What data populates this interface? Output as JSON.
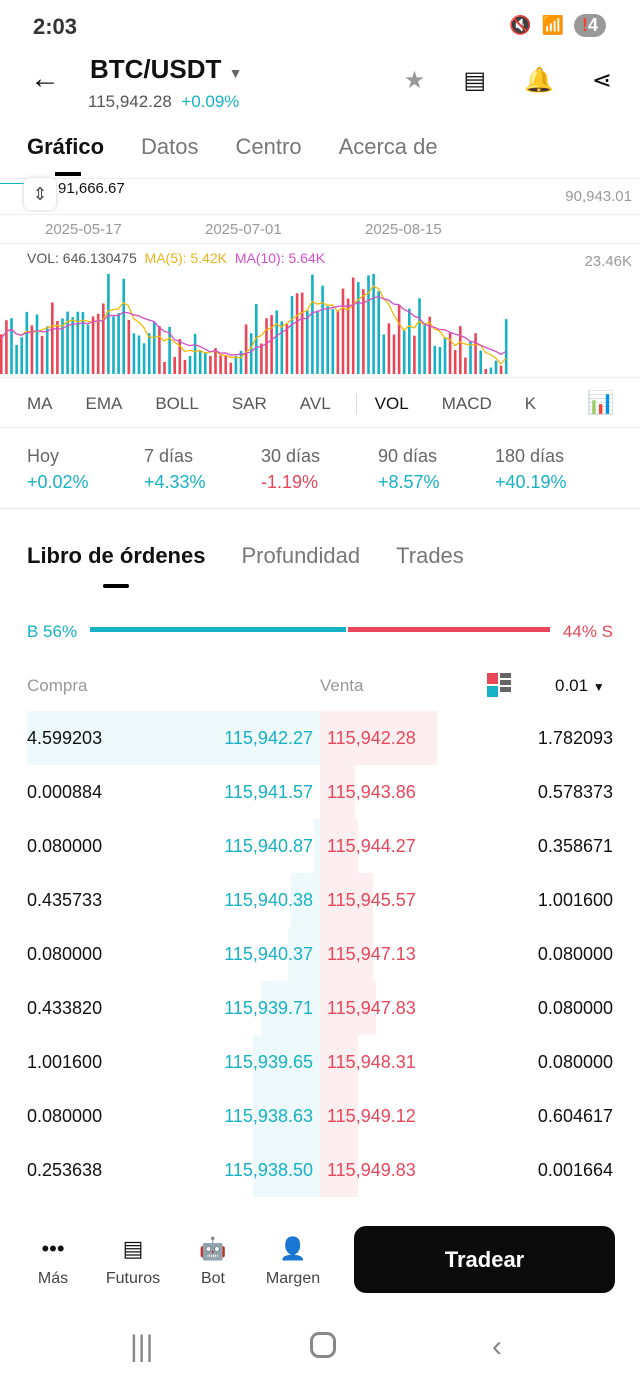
{
  "status": {
    "time": "2:03",
    "battery": "4"
  },
  "header": {
    "pair": "BTC/USDT",
    "price": "115,942.28",
    "change": "+0.09%"
  },
  "tabs": [
    "Gráfico",
    "Datos",
    "Centro",
    "Acerca de"
  ],
  "chart": {
    "crosshair_price": "91,666.67",
    "right_price": "90,943.01",
    "dates": [
      "2025-05-17",
      "2025-07-01",
      "2025-08-15"
    ],
    "vol_label": "VOL: 646.130475",
    "ma5": "MA(5): 5.42K",
    "ma10": "MA(10): 5.64K",
    "vol_max": "23.46K",
    "colors": {
      "up": "#16b1c4",
      "down": "#e8475a",
      "ma5": "#f0b90b",
      "ma10": "#d44fc6"
    }
  },
  "indicators": [
    "MA",
    "EMA",
    "BOLL",
    "SAR",
    "AVL",
    "VOL",
    "MACD",
    "K"
  ],
  "performance": [
    {
      "label": "Hoy",
      "value": "+0.02%",
      "up": true
    },
    {
      "label": "7 días",
      "value": "+4.33%",
      "up": true
    },
    {
      "label": "30 días",
      "value": "-1.19%",
      "up": false
    },
    {
      "label": "90 días",
      "value": "+8.57%",
      "up": true
    },
    {
      "label": "180 días",
      "value": "+40.19%",
      "up": true
    }
  ],
  "orderbook_tabs": [
    "Libro de órdenes",
    "Profundidad",
    "Trades"
  ],
  "ratio": {
    "buy_label": "B 56%",
    "sell_label": "44% S",
    "buy_pct": 56
  },
  "columns": {
    "buy": "Compra",
    "sell": "Venta",
    "precision": "0.01"
  },
  "rows": [
    {
      "bid_qty": "4.599203",
      "bid": "115,942.27",
      "ask": "115,942.28",
      "ask_qty": "1.782093",
      "bd": 1.0,
      "ad": 0.4
    },
    {
      "bid_qty": "0.000884",
      "bid": "115,941.57",
      "ask": "115,943.86",
      "ask_qty": "0.578373",
      "bd": 0.0,
      "ad": 0.12
    },
    {
      "bid_qty": "0.080000",
      "bid": "115,940.87",
      "ask": "115,944.27",
      "ask_qty": "0.358671",
      "bd": 0.02,
      "ad": 0.13
    },
    {
      "bid_qty": "0.435733",
      "bid": "115,940.38",
      "ask": "115,945.57",
      "ask_qty": "1.001600",
      "bd": 0.1,
      "ad": 0.18
    },
    {
      "bid_qty": "0.080000",
      "bid": "115,940.37",
      "ask": "115,947.13",
      "ask_qty": "0.080000",
      "bd": 0.11,
      "ad": 0.18
    },
    {
      "bid_qty": "0.433820",
      "bid": "115,939.71",
      "ask": "115,947.83",
      "ask_qty": "0.080000",
      "bd": 0.2,
      "ad": 0.19
    },
    {
      "bid_qty": "1.001600",
      "bid": "115,939.65",
      "ask": "115,948.31",
      "ask_qty": "0.080000",
      "bd": 0.23,
      "ad": 0.13
    },
    {
      "bid_qty": "0.080000",
      "bid": "115,938.63",
      "ask": "115,949.12",
      "ask_qty": "0.604617",
      "bd": 0.23,
      "ad": 0.13
    },
    {
      "bid_qty": "0.253638",
      "bid": "115,938.50",
      "ask": "115,949.83",
      "ask_qty": "0.001664",
      "bd": 0.23,
      "ad": 0.13
    }
  ],
  "bottom": {
    "more": "Más",
    "futures": "Futuros",
    "bot": "Bot",
    "margin": "Margen",
    "trade": "Tradear"
  }
}
